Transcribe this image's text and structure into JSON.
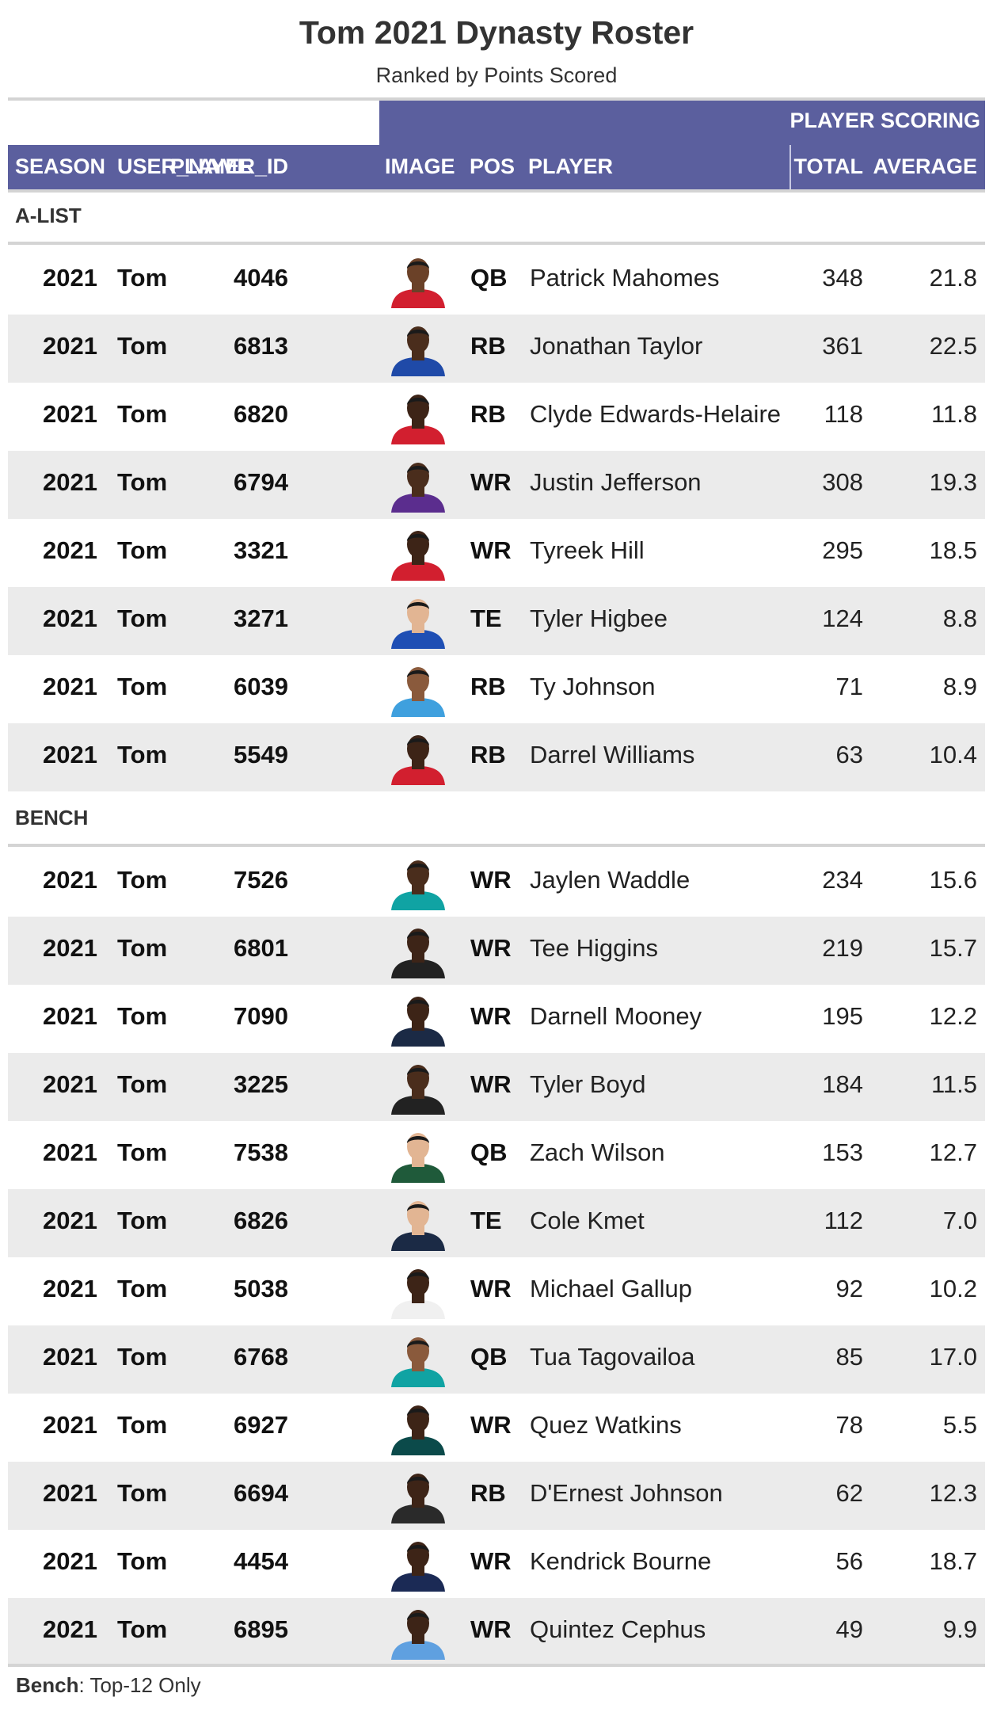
{
  "title": "Tom 2021 Dynasty Roster",
  "subtitle": "Ranked by Points Scored",
  "spanner_label": "PLAYER SCORING",
  "columns": {
    "season": "SEASON",
    "user_name": "USER_NAME",
    "player_id": "PLAYER_ID",
    "image": "IMAGE",
    "pos": "POS",
    "player": "PLAYER",
    "total": "TOTAL",
    "average": "AVERAGE"
  },
  "colors": {
    "header_bg": "#5b5f9e",
    "stripe_bg": "#ebebeb",
    "rule": "#d4d4d4"
  },
  "groups": [
    {
      "label": "A-LIST",
      "rows": [
        {
          "season": "2021",
          "user": "Tom",
          "player_id": "4046",
          "pos": "QB",
          "player": "Patrick Mahomes",
          "total": "348",
          "average": "21.8",
          "jersey": "#d21f2f",
          "skin": "#6b4128"
        },
        {
          "season": "2021",
          "user": "Tom",
          "player_id": "6813",
          "pos": "RB",
          "player": "Jonathan Taylor",
          "total": "361",
          "average": "22.5",
          "jersey": "#1f4aa8",
          "skin": "#4a2d1c"
        },
        {
          "season": "2021",
          "user": "Tom",
          "player_id": "6820",
          "pos": "RB",
          "player": "Clyde Edwards-Helaire",
          "total": "118",
          "average": "11.8",
          "jersey": "#d21f2f",
          "skin": "#3d2417"
        },
        {
          "season": "2021",
          "user": "Tom",
          "player_id": "6794",
          "pos": "WR",
          "player": "Justin Jefferson",
          "total": "308",
          "average": "19.3",
          "jersey": "#5b2d8e",
          "skin": "#4a2d1c"
        },
        {
          "season": "2021",
          "user": "Tom",
          "player_id": "3321",
          "pos": "WR",
          "player": "Tyreek Hill",
          "total": "295",
          "average": "18.5",
          "jersey": "#d21f2f",
          "skin": "#3d2417"
        },
        {
          "season": "2021",
          "user": "Tom",
          "player_id": "3271",
          "pos": "TE",
          "player": "Tyler Higbee",
          "total": "124",
          "average": "8.8",
          "jersey": "#1f4fb4",
          "skin": "#e2b593"
        },
        {
          "season": "2021",
          "user": "Tom",
          "player_id": "6039",
          "pos": "RB",
          "player": "Ty Johnson",
          "total": "71",
          "average": "8.9",
          "jersey": "#3fa0de",
          "skin": "#8a5a3c"
        },
        {
          "season": "2021",
          "user": "Tom",
          "player_id": "5549",
          "pos": "RB",
          "player": "Darrel Williams",
          "total": "63",
          "average": "10.4",
          "jersey": "#d21f2f",
          "skin": "#3d2417"
        }
      ]
    },
    {
      "label": "BENCH",
      "rows": [
        {
          "season": "2021",
          "user": "Tom",
          "player_id": "7526",
          "pos": "WR",
          "player": "Jaylen Waddle",
          "total": "234",
          "average": "15.6",
          "jersey": "#10a3a3",
          "skin": "#4a2d1c"
        },
        {
          "season": "2021",
          "user": "Tom",
          "player_id": "6801",
          "pos": "WR",
          "player": "Tee Higgins",
          "total": "219",
          "average": "15.7",
          "jersey": "#222222",
          "skin": "#3d2417"
        },
        {
          "season": "2021",
          "user": "Tom",
          "player_id": "7090",
          "pos": "WR",
          "player": "Darnell Mooney",
          "total": "195",
          "average": "12.2",
          "jersey": "#1b2a45",
          "skin": "#3d2417"
        },
        {
          "season": "2021",
          "user": "Tom",
          "player_id": "3225",
          "pos": "WR",
          "player": "Tyler Boyd",
          "total": "184",
          "average": "11.5",
          "jersey": "#222222",
          "skin": "#4a2d1c"
        },
        {
          "season": "2021",
          "user": "Tom",
          "player_id": "7538",
          "pos": "QB",
          "player": "Zach Wilson",
          "total": "153",
          "average": "12.7",
          "jersey": "#1f5a3a",
          "skin": "#e2b593"
        },
        {
          "season": "2021",
          "user": "Tom",
          "player_id": "6826",
          "pos": "TE",
          "player": "Cole Kmet",
          "total": "112",
          "average": "7.0",
          "jersey": "#1b2a45",
          "skin": "#e2b593"
        },
        {
          "season": "2021",
          "user": "Tom",
          "player_id": "5038",
          "pos": "WR",
          "player": "Michael Gallup",
          "total": "92",
          "average": "10.2",
          "jersey": "#f0f0f0",
          "skin": "#3d2417"
        },
        {
          "season": "2021",
          "user": "Tom",
          "player_id": "6768",
          "pos": "QB",
          "player": "Tua Tagovailoa",
          "total": "85",
          "average": "17.0",
          "jersey": "#10a3a3",
          "skin": "#8a5a3c"
        },
        {
          "season": "2021",
          "user": "Tom",
          "player_id": "6927",
          "pos": "WR",
          "player": "Quez Watkins",
          "total": "78",
          "average": "5.5",
          "jersey": "#0b4a4a",
          "skin": "#3d2417"
        },
        {
          "season": "2021",
          "user": "Tom",
          "player_id": "6694",
          "pos": "RB",
          "player": "D'Ernest Johnson",
          "total": "62",
          "average": "12.3",
          "jersey": "#2a2a2a",
          "skin": "#3d2417"
        },
        {
          "season": "2021",
          "user": "Tom",
          "player_id": "4454",
          "pos": "WR",
          "player": "Kendrick Bourne",
          "total": "56",
          "average": "18.7",
          "jersey": "#1b2a55",
          "skin": "#3d2417"
        },
        {
          "season": "2021",
          "user": "Tom",
          "player_id": "6895",
          "pos": "WR",
          "player": "Quintez Cephus",
          "total": "49",
          "average": "9.9",
          "jersey": "#5fa0e0",
          "skin": "#3d2417"
        }
      ]
    }
  ],
  "footnote": {
    "label": "Bench",
    "text": ": Top-12 Only"
  }
}
